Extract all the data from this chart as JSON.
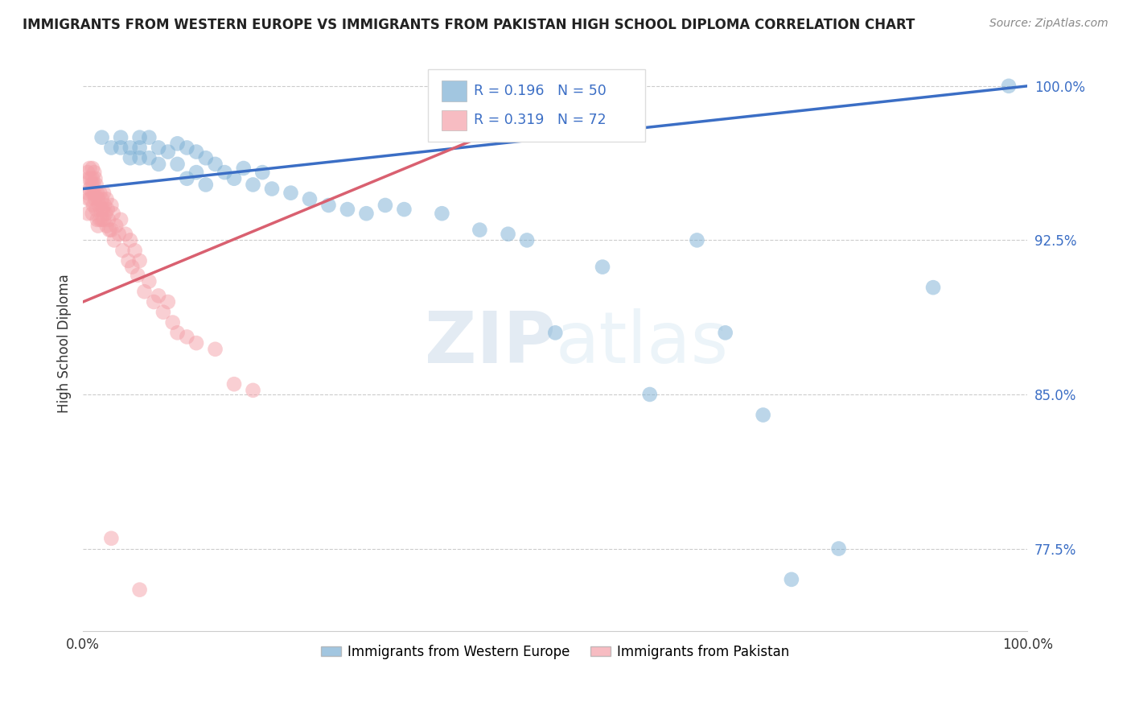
{
  "title": "IMMIGRANTS FROM WESTERN EUROPE VS IMMIGRANTS FROM PAKISTAN HIGH SCHOOL DIPLOMA CORRELATION CHART",
  "source": "Source: ZipAtlas.com",
  "ylabel": "High School Diploma",
  "xlim": [
    0.0,
    1.0
  ],
  "ylim": [
    0.735,
    1.015
  ],
  "blue_R": 0.196,
  "blue_N": 50,
  "pink_R": 0.319,
  "pink_N": 72,
  "blue_color": "#7BAFD4",
  "pink_color": "#F4A0A8",
  "blue_line_color": "#3B6EC5",
  "pink_line_color": "#D96070",
  "legend_label_blue": "Immigrants from Western Europe",
  "legend_label_pink": "Immigrants from Pakistan",
  "watermark_zip": "ZIP",
  "watermark_atlas": "atlas",
  "blue_scatter_x": [
    0.02,
    0.03,
    0.04,
    0.04,
    0.05,
    0.05,
    0.06,
    0.06,
    0.06,
    0.07,
    0.07,
    0.08,
    0.08,
    0.09,
    0.1,
    0.1,
    0.11,
    0.11,
    0.12,
    0.12,
    0.13,
    0.13,
    0.14,
    0.15,
    0.16,
    0.17,
    0.18,
    0.19,
    0.2,
    0.22,
    0.24,
    0.26,
    0.28,
    0.3,
    0.32,
    0.34,
    0.38,
    0.42,
    0.45,
    0.47,
    0.5,
    0.55,
    0.6,
    0.65,
    0.68,
    0.72,
    0.75,
    0.8,
    0.9,
    0.98
  ],
  "blue_scatter_y": [
    0.975,
    0.97,
    0.975,
    0.97,
    0.97,
    0.965,
    0.975,
    0.97,
    0.965,
    0.975,
    0.965,
    0.97,
    0.962,
    0.968,
    0.972,
    0.962,
    0.97,
    0.955,
    0.968,
    0.958,
    0.965,
    0.952,
    0.962,
    0.958,
    0.955,
    0.96,
    0.952,
    0.958,
    0.95,
    0.948,
    0.945,
    0.942,
    0.94,
    0.938,
    0.942,
    0.94,
    0.938,
    0.93,
    0.928,
    0.925,
    0.88,
    0.912,
    0.85,
    0.925,
    0.88,
    0.84,
    0.76,
    0.775,
    0.902,
    1.0
  ],
  "pink_scatter_x": [
    0.005,
    0.005,
    0.005,
    0.006,
    0.006,
    0.007,
    0.007,
    0.008,
    0.008,
    0.009,
    0.01,
    0.01,
    0.01,
    0.01,
    0.011,
    0.011,
    0.012,
    0.012,
    0.013,
    0.013,
    0.014,
    0.014,
    0.015,
    0.015,
    0.016,
    0.016,
    0.017,
    0.018,
    0.018,
    0.019,
    0.02,
    0.02,
    0.021,
    0.022,
    0.022,
    0.023,
    0.024,
    0.025,
    0.025,
    0.026,
    0.027,
    0.028,
    0.03,
    0.03,
    0.032,
    0.033,
    0.035,
    0.038,
    0.04,
    0.042,
    0.045,
    0.048,
    0.05,
    0.052,
    0.055,
    0.058,
    0.06,
    0.065,
    0.07,
    0.075,
    0.08,
    0.085,
    0.09,
    0.095,
    0.1,
    0.11,
    0.12,
    0.14,
    0.16,
    0.18,
    0.03,
    0.06
  ],
  "pink_scatter_y": [
    0.958,
    0.948,
    0.938,
    0.955,
    0.945,
    0.96,
    0.95,
    0.955,
    0.945,
    0.952,
    0.96,
    0.955,
    0.948,
    0.938,
    0.952,
    0.942,
    0.958,
    0.948,
    0.955,
    0.945,
    0.952,
    0.94,
    0.948,
    0.935,
    0.945,
    0.932,
    0.942,
    0.948,
    0.935,
    0.94,
    0.945,
    0.935,
    0.94,
    0.948,
    0.935,
    0.942,
    0.938,
    0.945,
    0.932,
    0.94,
    0.935,
    0.93,
    0.942,
    0.93,
    0.938,
    0.925,
    0.932,
    0.928,
    0.935,
    0.92,
    0.928,
    0.915,
    0.925,
    0.912,
    0.92,
    0.908,
    0.915,
    0.9,
    0.905,
    0.895,
    0.898,
    0.89,
    0.895,
    0.885,
    0.88,
    0.878,
    0.875,
    0.872,
    0.855,
    0.852,
    0.78,
    0.755
  ],
  "blue_trendline_x": [
    0.0,
    1.0
  ],
  "blue_trendline_y_start": 0.95,
  "blue_trendline_y_end": 1.0,
  "pink_trendline_x": [
    0.0,
    0.42
  ],
  "pink_trendline_y_start": 0.895,
  "pink_trendline_y_end": 0.975
}
